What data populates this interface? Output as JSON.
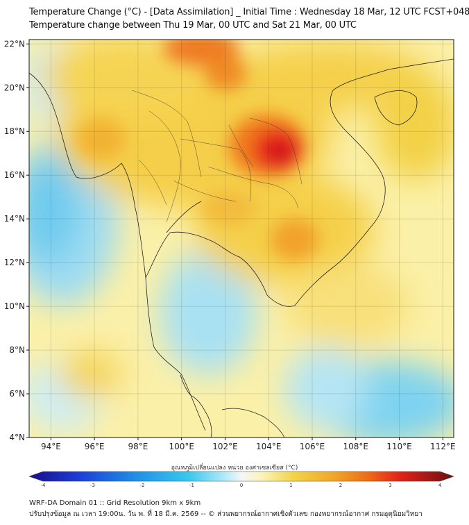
{
  "title_line1": "Temperature Change (°C) - [Data Assimilation] _ Initial Time : Wednesday 18 Mar, 12 UTC FCST+048",
  "title_line2": "Temperature change between Thu 19 Mar, 00 UTC and Sat 21 Mar, 00 UTC",
  "map": {
    "lon_range": [
      93,
      112.5
    ],
    "lat_range": [
      4,
      22.2
    ],
    "x_ticks": [
      "94°E",
      "96°E",
      "98°E",
      "100°E",
      "102°E",
      "104°E",
      "106°E",
      "108°E",
      "110°E",
      "112°E"
    ],
    "y_ticks": [
      "22°N",
      "20°N",
      "18°N",
      "16°N",
      "14°N",
      "12°N",
      "10°N",
      "8°N",
      "6°N",
      "4°N"
    ],
    "grid": true
  },
  "colorbar": {
    "title": "อุณหภูมิเปลี่ยนแปลง หน่วย องศาเซลเซียส (°C)",
    "ticks": [
      "-4",
      "-3",
      "-2",
      "-1",
      "0",
      "1",
      "2",
      "3",
      "4"
    ],
    "range": [
      -4,
      4
    ]
  },
  "footer_line1": "WRF-DA Domain 01 :: Grid Resolution 9km x 9km",
  "footer_line2": "ปรับปรุงข้อมูล ณ เวลา 19:00น. วัน พ. ที่ 18 มี.ค. 2569 -- © ส่วนพยากรณ์อากาศเชิงตัวเลข กองพยากรณ์อากาศ กรมอุตุนิยมวิทยา",
  "colors": {
    "very_cold": "#1a0d8c",
    "cold": "#37c8ee",
    "neutral": "#f6f6f6",
    "warm": "#f3d344",
    "hot": "#ef6a14",
    "very_hot": "#6b0f0f"
  }
}
